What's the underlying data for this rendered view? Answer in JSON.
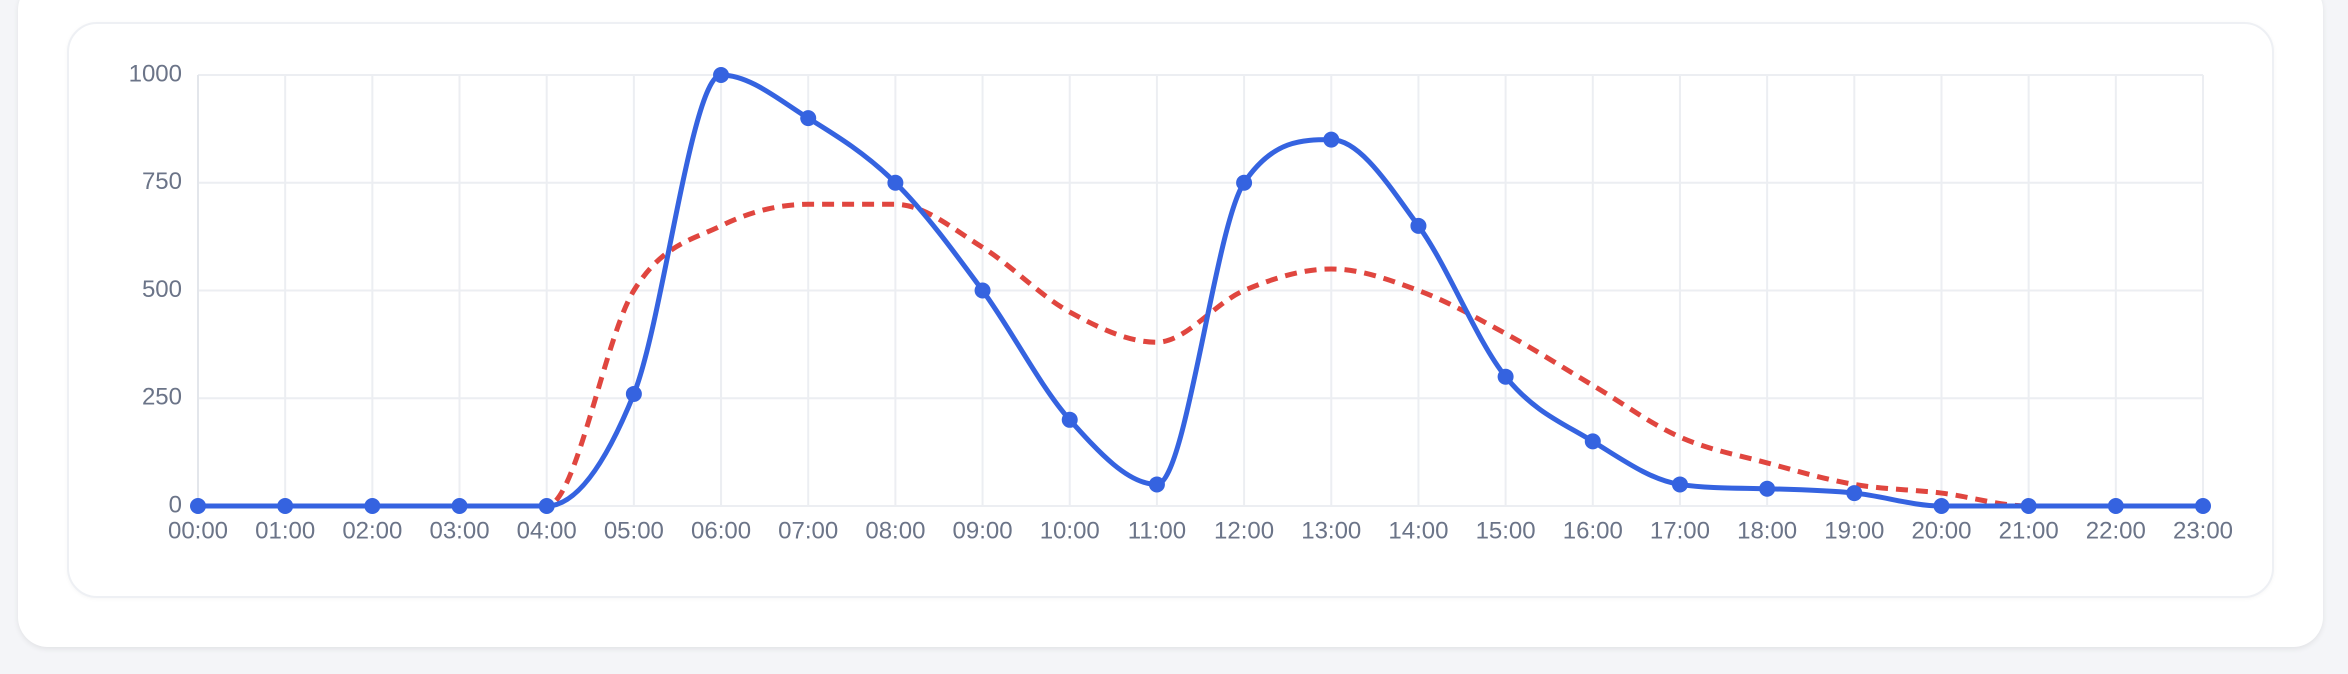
{
  "chart_data": {
    "type": "line",
    "categories": [
      "00:00",
      "01:00",
      "02:00",
      "03:00",
      "04:00",
      "05:00",
      "06:00",
      "07:00",
      "08:00",
      "09:00",
      "10:00",
      "11:00",
      "12:00",
      "13:00",
      "14:00",
      "15:00",
      "16:00",
      "17:00",
      "18:00",
      "19:00",
      "20:00",
      "21:00",
      "22:00",
      "23:00"
    ],
    "series": [
      {
        "color": "#3563e0",
        "dashed": false,
        "markers": true,
        "values": [
          0,
          0,
          0,
          0,
          0,
          260,
          1000,
          900,
          750,
          500,
          200,
          50,
          750,
          850,
          650,
          300,
          150,
          50,
          40,
          30,
          0,
          0,
          0,
          0
        ]
      },
      {
        "color": "#e0463f",
        "dashed": true,
        "markers": false,
        "values": [
          0,
          0,
          0,
          0,
          0,
          500,
          650,
          700,
          700,
          600,
          450,
          380,
          500,
          550,
          500,
          400,
          280,
          160,
          100,
          50,
          30,
          0,
          0,
          0
        ]
      }
    ],
    "ylim": [
      0,
      1000
    ],
    "yticks": [
      0,
      250,
      500,
      750,
      1000
    ],
    "grid": true
  }
}
